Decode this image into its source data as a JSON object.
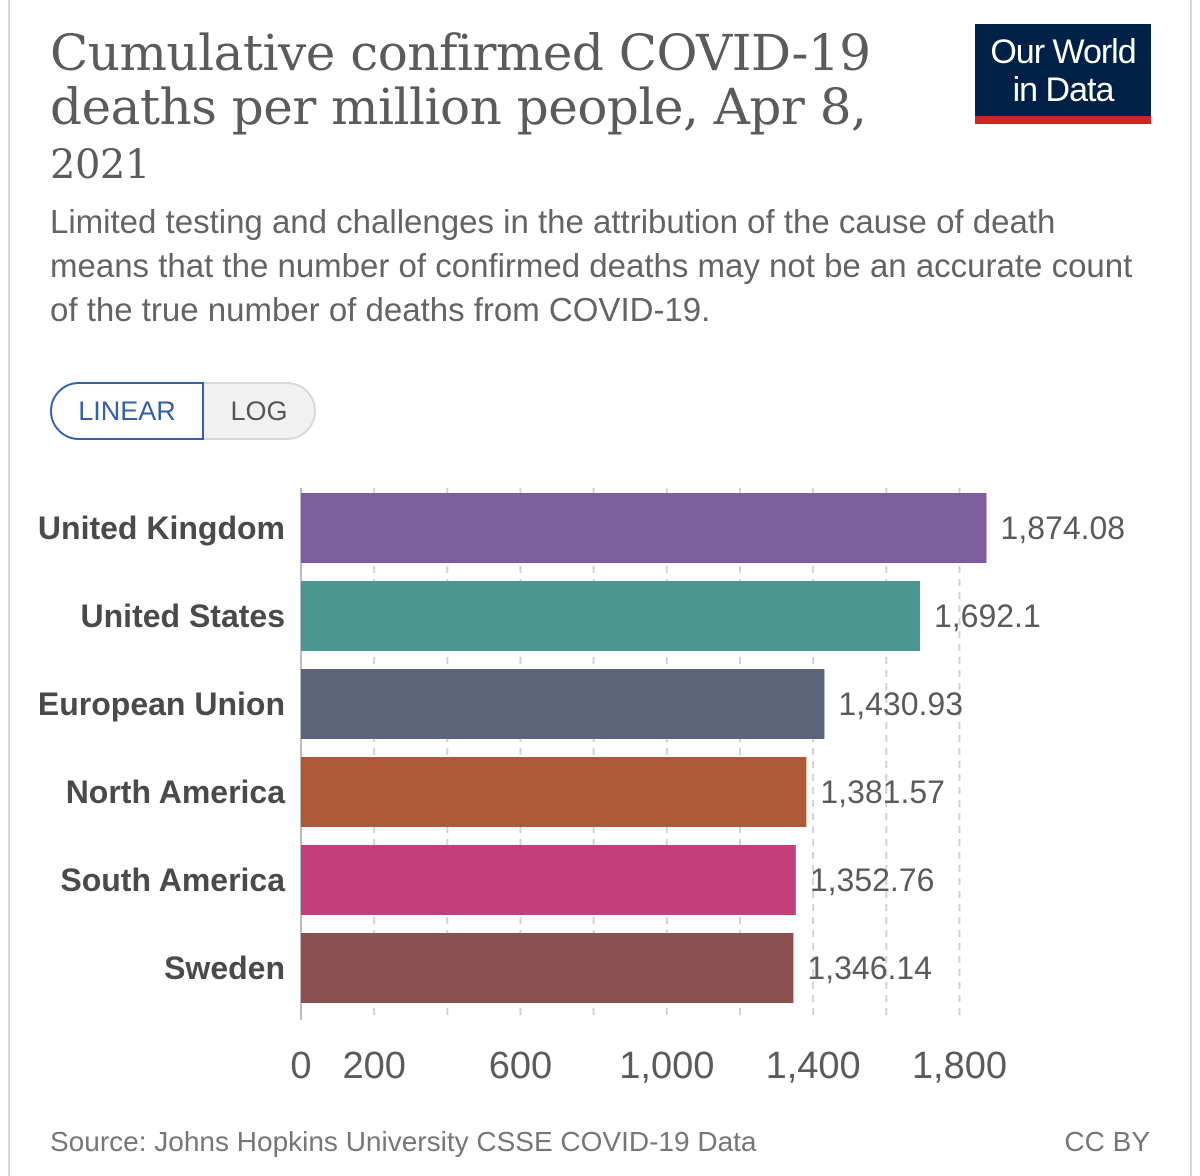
{
  "header": {
    "title": "Cumulative confirmed COVID-19 deaths per million people, Apr 8,",
    "title_year": "2021",
    "subtitle": "Limited testing and challenges in the attribution of the cause of death means that the number of confirmed deaths may not be an accurate count of the true number of deaths from COVID-19.",
    "logo_line1": "Our World",
    "logo_line2": "in Data"
  },
  "scale_toggle": {
    "linear_label": "LINEAR",
    "log_label": "LOG",
    "selected": "LINEAR"
  },
  "footer": {
    "source": "Source: Johns Hopkins University CSSE COVID-19 Data",
    "license": "CC BY"
  },
  "colors": {
    "logo_bg": "#002147",
    "logo_stripe": "#ce261e",
    "toggle_active": "#3360a9"
  },
  "chart_data": {
    "type": "bar",
    "orientation": "horizontal",
    "title": "Cumulative confirmed COVID-19 deaths per million people, Apr 8, 2021",
    "categories": [
      "United Kingdom",
      "United States",
      "European Union",
      "North America",
      "South America",
      "Sweden"
    ],
    "values": [
      1874.08,
      1692.1,
      1430.93,
      1381.57,
      1352.76,
      1346.14
    ],
    "value_labels": [
      "1,874.08",
      "1,692.1",
      "1,430.93",
      "1,381.57",
      "1,352.76",
      "1,346.14"
    ],
    "colors": [
      "#7c5d9e",
      "#4a9690",
      "#5b6479",
      "#ad5837",
      "#c33f7c",
      "#8b5152"
    ],
    "xlim": [
      0,
      1800
    ],
    "xticks": [
      0,
      200,
      600,
      1000,
      1400,
      1800
    ],
    "xtick_labels": [
      "0",
      "200",
      "600",
      "1,000",
      "1,400",
      "1,800"
    ],
    "grid_values": [
      200,
      400,
      600,
      800,
      1000,
      1200,
      1400,
      1600,
      1800
    ],
    "xlabel": "",
    "ylabel": "",
    "grid": true
  }
}
